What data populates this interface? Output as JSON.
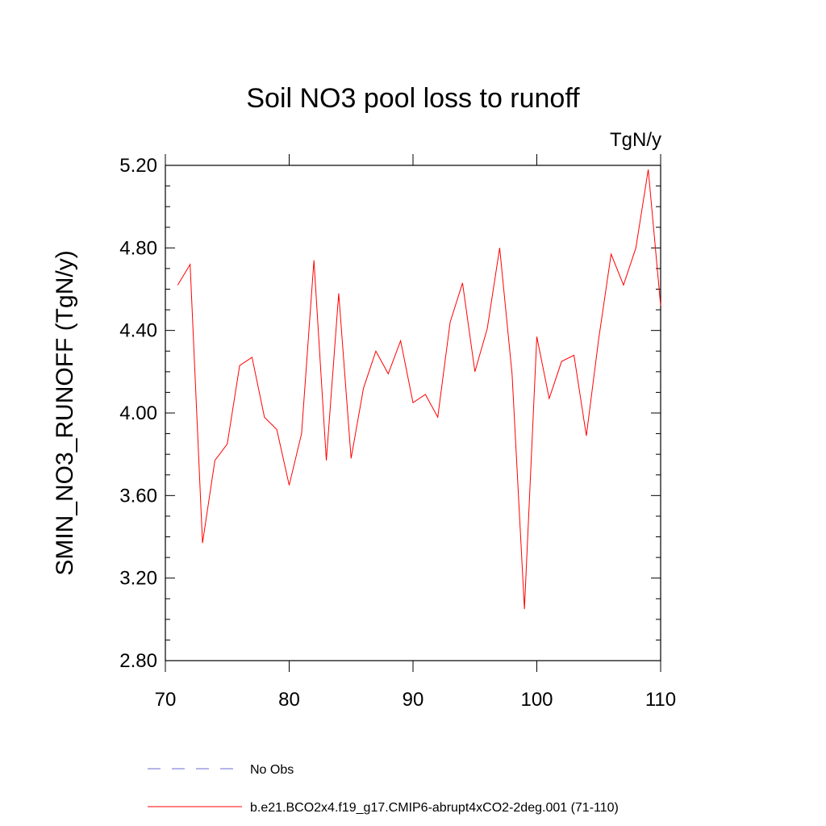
{
  "chart_data": {
    "type": "line",
    "title": "Soil NO3 pool loss to runoff",
    "units": "TgN/y",
    "ylabel": "SMIN_NO3_RUNOFF  (TgN/y)",
    "xlabel": "",
    "xlim": [
      70,
      110
    ],
    "ylim": [
      2.8,
      5.2
    ],
    "x_ticks": [
      70,
      80,
      90,
      100,
      110
    ],
    "x_tick_labels": [
      "70",
      "80",
      "90",
      "100",
      "110"
    ],
    "y_ticks": [
      2.8,
      3.2,
      3.6,
      4.0,
      4.4,
      4.8,
      5.2
    ],
    "y_tick_labels": [
      "2.80",
      "3.20",
      "3.60",
      "4.00",
      "4.40",
      "4.80",
      "5.20"
    ],
    "grid": false,
    "legend_placement": "bottom",
    "series": [
      {
        "name": "b.e21.BCO2x4.f19_g17.CMIP6-abrupt4xCO2-2deg.001 (71-110)",
        "color": "#ff0000",
        "style": "solid",
        "x": [
          71,
          72,
          73,
          74,
          75,
          76,
          77,
          78,
          79,
          80,
          81,
          82,
          83,
          84,
          85,
          86,
          87,
          88,
          89,
          90,
          91,
          92,
          93,
          94,
          95,
          96,
          97,
          98,
          99,
          100,
          101,
          102,
          103,
          104,
          105,
          106,
          107,
          108,
          109,
          110
        ],
        "values": [
          4.62,
          4.72,
          3.37,
          3.77,
          3.85,
          4.23,
          4.27,
          3.98,
          3.92,
          3.65,
          3.9,
          4.74,
          3.77,
          4.58,
          3.78,
          4.12,
          4.3,
          4.19,
          4.35,
          4.05,
          4.09,
          3.98,
          4.44,
          4.63,
          4.2,
          4.41,
          4.8,
          4.19,
          3.05,
          4.37,
          4.07,
          4.25,
          4.28,
          3.89,
          4.36,
          4.77,
          4.62,
          4.8,
          5.18,
          4.52
        ]
      }
    ],
    "legend": [
      {
        "label": "No Obs",
        "color": "#6b6bd6",
        "style": "dashed"
      },
      {
        "label": "b.e21.BCO2x4.f19_g17.CMIP6-abrupt4xCO2-2deg.001 (71-110)",
        "color": "#ff0000",
        "style": "solid"
      }
    ]
  }
}
